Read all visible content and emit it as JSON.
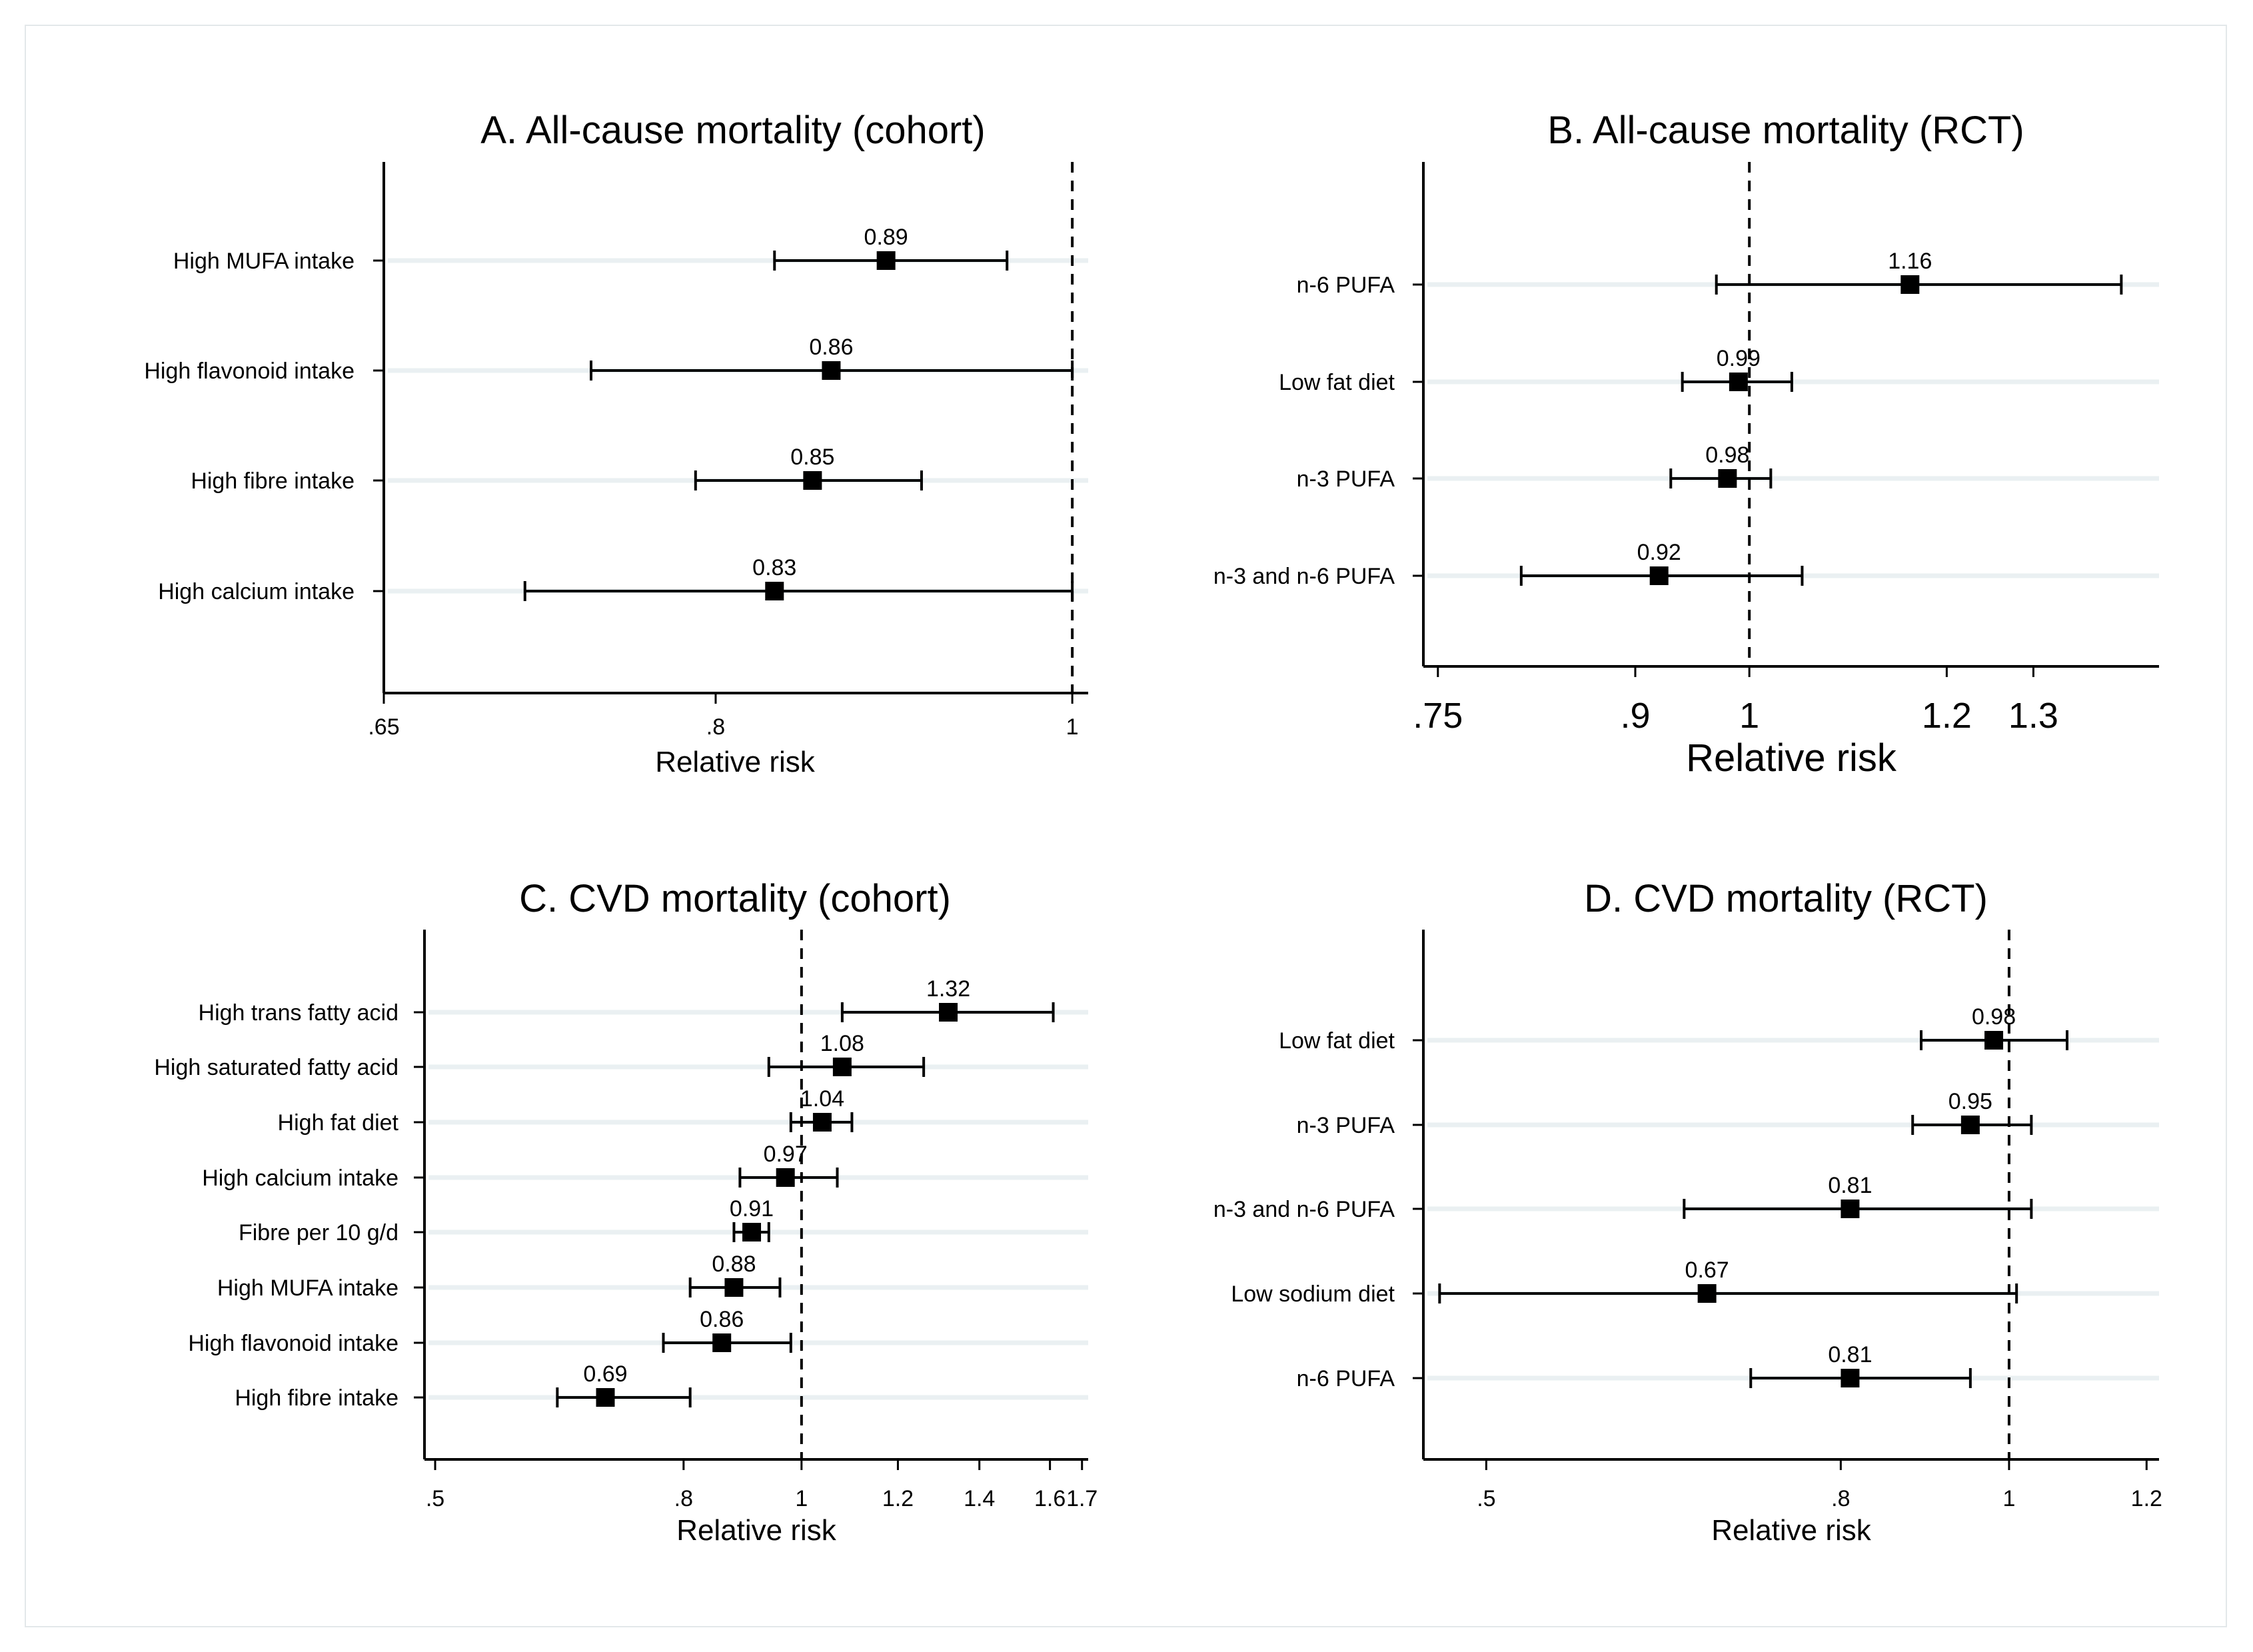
{
  "chart_data": [
    {
      "id": "A",
      "type": "forest",
      "title": "A. All-cause mortality (cohort)",
      "xlabel": "Relative risk",
      "scale": "log",
      "xlim": [
        0.65,
        1.01
      ],
      "xticks": [
        {
          "v": 0.65,
          "label": ".65"
        },
        {
          "v": 0.8,
          "label": ".8"
        },
        {
          "v": 1,
          "label": "1"
        }
      ],
      "reference_line": 1,
      "rows": [
        {
          "label": "High MUFA intake",
          "est": 0.89,
          "est_label": "0.89",
          "lo": 0.83,
          "hi": 0.96
        },
        {
          "label": "High flavonoid intake",
          "est": 0.86,
          "est_label": "0.86",
          "lo": 0.74,
          "hi": 1.0
        },
        {
          "label": "High fibre intake",
          "est": 0.85,
          "est_label": "0.85",
          "lo": 0.79,
          "hi": 0.91
        },
        {
          "label": "High calcium intake",
          "est": 0.83,
          "est_label": "0.83",
          "lo": 0.71,
          "hi": 1.0
        }
      ]
    },
    {
      "id": "B",
      "type": "forest",
      "title": "B. All-cause mortality (RCT)",
      "xlabel": "Relative risk",
      "scale": "log",
      "xlim": [
        0.74,
        1.46
      ],
      "xticks": [
        {
          "v": 0.75,
          "label": ".75"
        },
        {
          "v": 0.9,
          "label": ".9"
        },
        {
          "v": 1,
          "label": "1"
        },
        {
          "v": 1.2,
          "label": "1.2"
        },
        {
          "v": 1.3,
          "label": "1.3"
        }
      ],
      "reference_line": 1,
      "rows": [
        {
          "label": "n-6 PUFA",
          "est": 1.16,
          "est_label": "1.16",
          "lo": 0.97,
          "hi": 1.41
        },
        {
          "label": "Low fat diet",
          "est": 0.99,
          "est_label": "0.99",
          "lo": 0.94,
          "hi": 1.04
        },
        {
          "label": "n-3 PUFA",
          "est": 0.98,
          "est_label": "0.98",
          "lo": 0.93,
          "hi": 1.02
        },
        {
          "label": "n-3 and n-6 PUFA",
          "est": 0.92,
          "est_label": "0.92",
          "lo": 0.81,
          "hi": 1.05
        }
      ]
    },
    {
      "id": "C",
      "type": "forest",
      "title": "C. CVD mortality (cohort)",
      "xlabel": "Relative risk",
      "scale": "log",
      "xlim": [
        0.49,
        1.72
      ],
      "xticks": [
        {
          "v": 0.5,
          "label": ".5"
        },
        {
          "v": 0.8,
          "label": ".8"
        },
        {
          "v": 1,
          "label": "1"
        },
        {
          "v": 1.2,
          "label": "1.2"
        },
        {
          "v": 1.4,
          "label": "1.4"
        },
        {
          "v": 1.6,
          "label": "1.6"
        },
        {
          "v": 1.7,
          "label": "1.7"
        }
      ],
      "reference_line": 1,
      "rows": [
        {
          "label": "High trans fatty acid",
          "est": 1.32,
          "est_label": "1.32",
          "lo": 1.08,
          "hi": 1.61
        },
        {
          "label": "High saturated fatty acid",
          "est": 1.08,
          "est_label": "1.08",
          "lo": 0.94,
          "hi": 1.26
        },
        {
          "label": "High fat diet",
          "est": 1.04,
          "est_label": "1.04",
          "lo": 0.98,
          "hi": 1.1
        },
        {
          "label": "High calcium intake",
          "est": 0.97,
          "est_label": "0.97",
          "lo": 0.89,
          "hi": 1.07
        },
        {
          "label": "Fibre per 10 g/d",
          "est": 0.91,
          "est_label": "0.91",
          "lo": 0.88,
          "hi": 0.94
        },
        {
          "label": "High MUFA intake",
          "est": 0.88,
          "est_label": "0.88",
          "lo": 0.81,
          "hi": 0.96
        },
        {
          "label": "High flavonoid intake",
          "est": 0.86,
          "est_label": "0.86",
          "lo": 0.77,
          "hi": 0.98
        },
        {
          "label": "High fibre intake",
          "est": 0.69,
          "est_label": "0.69",
          "lo": 0.63,
          "hi": 0.81
        }
      ]
    },
    {
      "id": "D",
      "type": "forest",
      "title": "D. CVD mortality (RCT)",
      "xlabel": "Relative risk",
      "scale": "log",
      "xlim": [
        0.46,
        1.22
      ],
      "xticks": [
        {
          "v": 0.5,
          "label": ".5"
        },
        {
          "v": 0.8,
          "label": ".8"
        },
        {
          "v": 1,
          "label": "1"
        },
        {
          "v": 1.2,
          "label": "1.2"
        }
      ],
      "reference_line": 1,
      "rows": [
        {
          "label": "Low fat diet",
          "est": 0.98,
          "est_label": "0.98",
          "lo": 0.89,
          "hi": 1.08
        },
        {
          "label": "n-3 PUFA",
          "est": 0.95,
          "est_label": "0.95",
          "lo": 0.88,
          "hi": 1.03
        },
        {
          "label": "n-3 and n-6 PUFA",
          "est": 0.81,
          "est_label": "0.81",
          "lo": 0.65,
          "hi": 1.03
        },
        {
          "label": "Low sodium diet",
          "est": 0.67,
          "est_label": "0.67",
          "lo": 0.47,
          "hi": 1.01
        },
        {
          "label": "n-6 PUFA",
          "est": 0.81,
          "est_label": "0.81",
          "lo": 0.71,
          "hi": 0.95
        }
      ]
    }
  ]
}
